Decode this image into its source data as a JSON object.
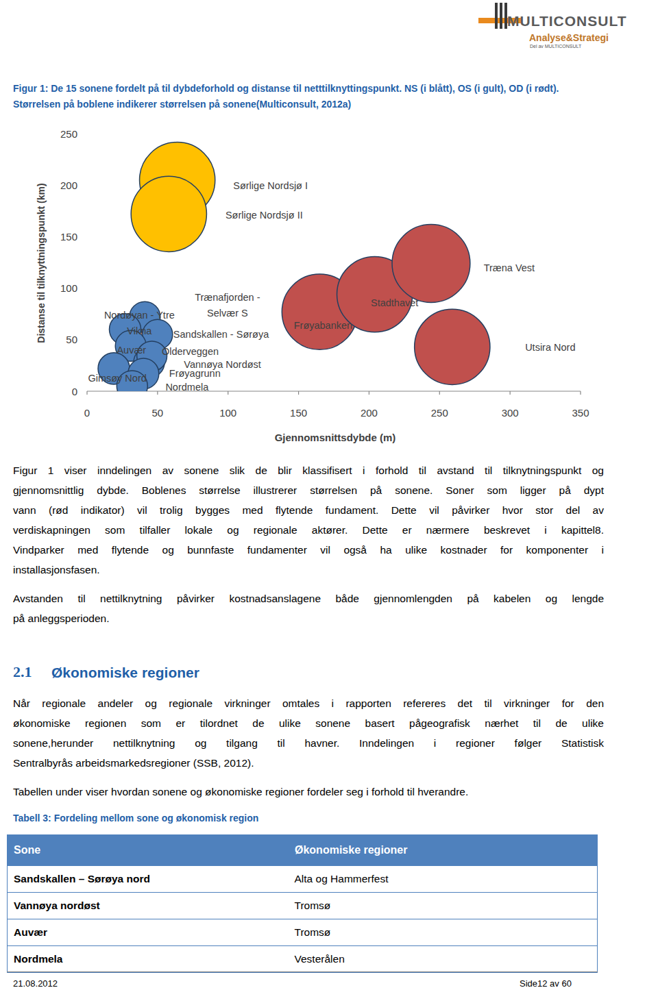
{
  "header": {
    "brand": "MULTICONSULT",
    "division": "Analyse&Strategi",
    "tagline": "Del av MULTICONSULT"
  },
  "figure_caption": {
    "lines": [
      "Figur 1: De 15 sonene fordelt på til dybdeforhold og distanse til netttilknyttingspunkt. NS (i blått), OS (i gult), OD (i rødt).",
      "Størrelsen på boblene indikerer størrelsen på sonene(Multiconsult, 2012a)"
    ]
  },
  "chart_data": {
    "type": "bubble",
    "xlabel": "Gjennomsnittsdybde (m)",
    "ylabel": "Distanse til tilknyttningspunkt (km)",
    "xlim": [
      0,
      350
    ],
    "xticks": [
      0,
      50,
      100,
      150,
      200,
      250,
      300,
      350
    ],
    "ylim": [
      0,
      250
    ],
    "yticks": [
      0,
      50,
      100,
      150,
      200,
      250
    ],
    "grid": false,
    "series": [
      {
        "color": "#4f81bd",
        "labels": [
          "Nordøyan - Ytre Vikna",
          "Trænafjorden - Selvær S",
          "Sandskallen - Sørøya",
          "Auvær",
          "Olderveggen",
          "Vannøya Nordøst",
          "Gimsøy Nord",
          "Frøyagrunn",
          "Nordmela"
        ],
        "x": [
          41,
          50,
          27,
          31,
          44,
          46,
          19,
          40,
          32
        ],
        "values": [
          72,
          55,
          60,
          44,
          28,
          34,
          22,
          17,
          5
        ],
        "sizes": [
          100,
          95,
          105,
          100,
          100,
          95,
          105,
          100,
          100
        ]
      },
      {
        "color": "#ffc000",
        "labels": [
          "Sørlige Nordsjø I",
          "Sørlige Nordsjø II"
        ],
        "x": [
          64,
          58
        ],
        "values": [
          205,
          172
        ],
        "sizes": [
          600,
          600
        ]
      },
      {
        "color": "#c0504d",
        "labels": [
          "Frøyabanken",
          "Stadthavet",
          "Træna Vest",
          "Utsira Nord"
        ],
        "x": [
          165,
          204,
          244,
          259
        ],
        "values": [
          77,
          94,
          124,
          43
        ],
        "sizes": [
          600,
          600,
          640,
          600
        ]
      }
    ]
  },
  "paragraphs": [
    {
      "lines": [
        "Figur 1 viser inndelingen av sonene slik de blir klassifisert i forhold til avstand til tilknytningspunkt og",
        "gjennomsnittlig dybde. Boblenes størrelse illustrerer størrelsen på sonene. Soner som ligger på dypt",
        "vann (rød indikator) vil trolig bygges med flytende fundament. Dette vil påvirker hvor stor del av",
        "verdiskapningen som tilfaller lokale og regionale aktører. Dette er nærmere beskrevet i kapittel8.",
        "Vindparker med flytende og bunnfaste fundamenter vil også ha ulike kostnader for komponenter i",
        "installasjonsfasen."
      ]
    },
    {
      "lines": [
        "Avstanden til nettilknytning påvirker kostnadsanslagene både gjennomlengden på kabelen og lengde",
        "på anleggsperioden."
      ]
    },
    {
      "lines": [
        "Når regionale andeler og regionale virkninger omtales i rapporten refereres det til virkninger for den",
        "økonomiske regionen som er tilordnet de ulike sonene basert pågeografisk nærhet til de ulike",
        "sonene,herunder nettilknytning og tilgang til havner. Inndelingen i regioner følger Statistisk",
        "Sentralbyrås arbeidsmarkedsregioner (SSB, 2012)."
      ]
    },
    {
      "lines": [
        "Tabellen under viser hvordan sonene og økonomiske regioner fordeler seg i forhold til hverandre."
      ]
    }
  ],
  "section_heading": {
    "number": "2.1",
    "title": "Økonomiske regioner"
  },
  "table_caption": "Tabell 3: Fordeling mellom sone og økonomisk region",
  "table": {
    "header": [
      "Sone",
      "Økonomiske regioner"
    ],
    "rows": [
      [
        "Sandskallen – Sørøya nord",
        "Alta og Hammerfest"
      ],
      [
        "Vannøya nordøst",
        "Tromsø"
      ],
      [
        "Auvær",
        "Tromsø"
      ],
      [
        "Nordmela",
        "Vesterålen"
      ]
    ]
  },
  "footer": {
    "date": "21.08.2012",
    "page": "Side12 av 60"
  }
}
